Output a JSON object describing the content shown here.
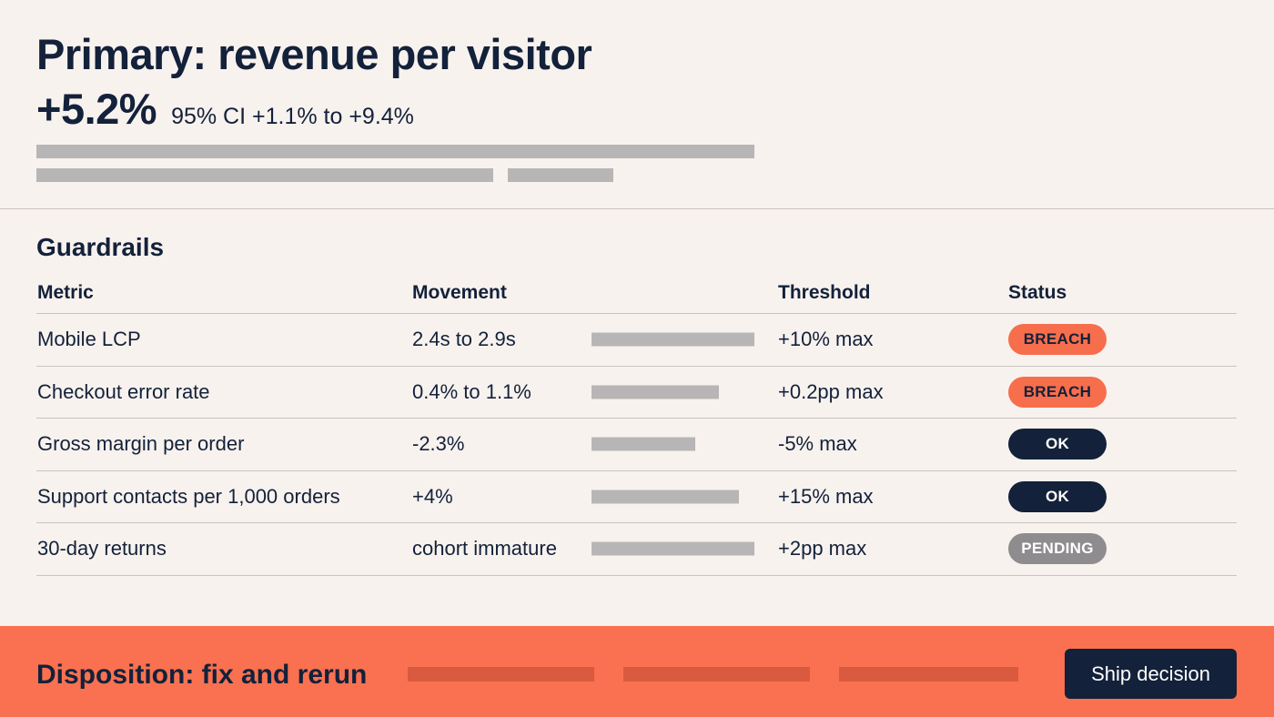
{
  "primary": {
    "title": "Primary: revenue per visitor",
    "lift": "+5.2%",
    "ci": "95% CI +1.1% to +9.4%"
  },
  "guardrails": {
    "title": "Guardrails",
    "columns": {
      "metric": "Metric",
      "movement": "Movement",
      "threshold": "Threshold",
      "status": "Status"
    },
    "rows": [
      {
        "metric": "Mobile LCP",
        "movement": "2.4s to 2.9s",
        "threshold": "+10% max",
        "status": "BREACH",
        "status_kind": "breach"
      },
      {
        "metric": "Checkout error rate",
        "movement": "0.4% to 1.1%",
        "threshold": "+0.2pp max",
        "status": "BREACH",
        "status_kind": "breach"
      },
      {
        "metric": "Gross margin per order",
        "movement": "-2.3%",
        "threshold": "-5% max",
        "status": "OK",
        "status_kind": "ok"
      },
      {
        "metric": "Support contacts per 1,000 orders",
        "movement": "+4%",
        "threshold": "+15% max",
        "status": "OK",
        "status_kind": "ok"
      },
      {
        "metric": "30-day returns",
        "movement": "cohort immature",
        "threshold": "+2pp max",
        "status": "PENDING",
        "status_kind": "pending"
      }
    ]
  },
  "footer": {
    "disposition": "Disposition: fix and rerun",
    "ship_button": "Ship decision"
  },
  "colors": {
    "background": "#f8f2ee",
    "text": "#13213a",
    "breach": "#f76e4c",
    "ok": "#13213a",
    "pending": "#8e8c8e",
    "footer": "#f97150"
  }
}
